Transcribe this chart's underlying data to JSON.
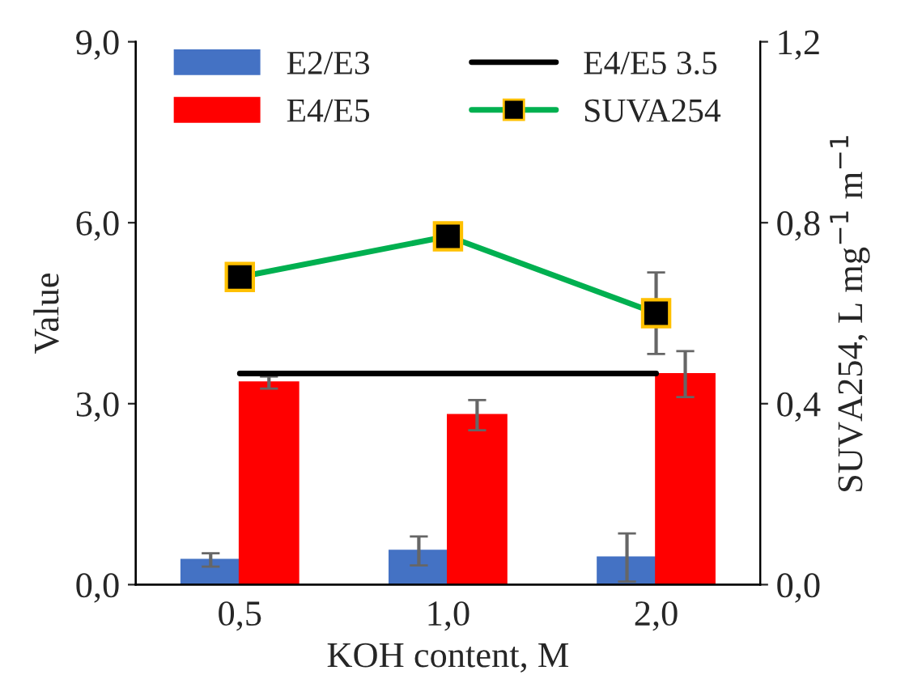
{
  "chart_data": {
    "type": "bar",
    "categories": [
      "0,5",
      "1,0",
      "2,0"
    ],
    "xlabel": "KOH content, M",
    "ylabel": "Value",
    "y2label": "SUVA254, L mg$^{−1}$ m$^{−1}$",
    "series": [
      {
        "name": "E2/E3",
        "color": "#4472c4",
        "values": [
          0.41,
          0.56,
          0.45
        ],
        "errors": [
          0.11,
          0.24,
          0.4
        ]
      },
      {
        "name": "E4/E5",
        "color": "#ff0000",
        "values": [
          3.35,
          2.81,
          3.49
        ],
        "errors": [
          0.1,
          0.25,
          0.38
        ]
      },
      {
        "name": "E4/E5 3.5",
        "type": "line",
        "color": "#000000",
        "marker": "none",
        "values": [
          3.5,
          3.5,
          3.5
        ]
      },
      {
        "name": "SUVA254",
        "type": "line",
        "axis": "y2",
        "color": "#00b050",
        "marker": "square",
        "values": [
          0.68,
          0.77,
          0.6
        ],
        "errors": [
          null,
          null,
          0.09
        ]
      }
    ],
    "ylim": [
      0,
      9
    ],
    "yticks": [
      {
        "value": 0,
        "label": "0,0"
      },
      {
        "value": 3,
        "label": "3,0"
      },
      {
        "value": 6,
        "label": "6,0"
      },
      {
        "value": 9,
        "label": "9,0"
      }
    ],
    "y2lim": [
      0,
      1.2
    ],
    "y2ticks": [
      {
        "value": 0,
        "label": "0,0"
      },
      {
        "value": 0.4,
        "label": "0,4"
      },
      {
        "value": 0.8,
        "label": "0,8"
      },
      {
        "value": 1.2,
        "label": "1,2"
      }
    ],
    "legend": "top",
    "grid": false
  }
}
